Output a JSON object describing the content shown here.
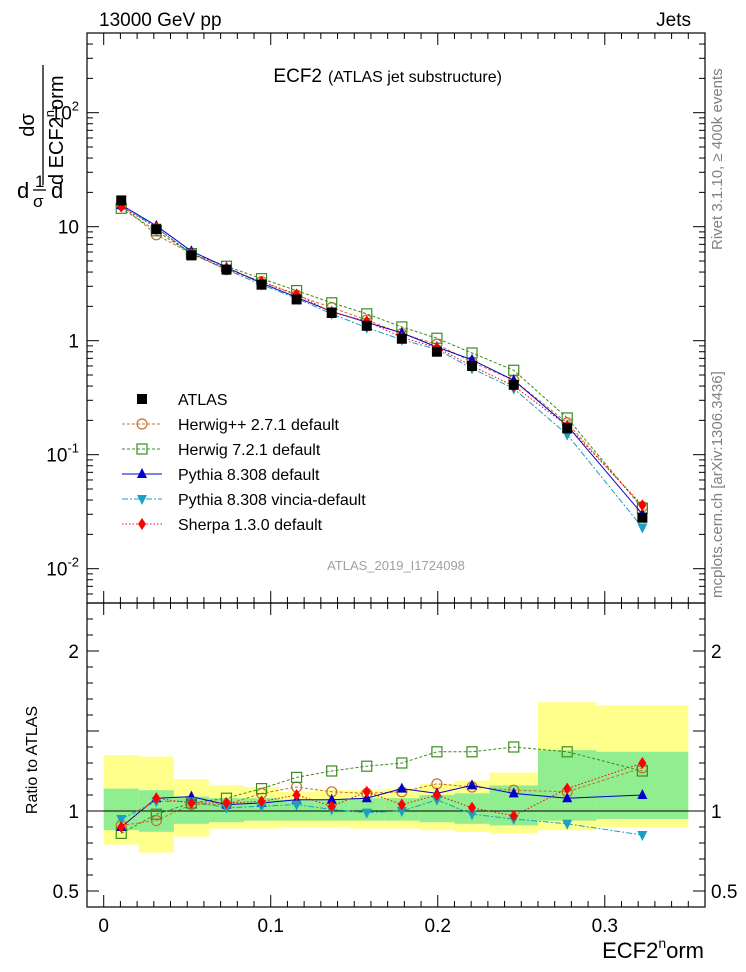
{
  "header": {
    "left": "13000 GeV pp",
    "right": "Jets",
    "title": "ECF2",
    "subtitle": "(ATLAS jet substructure)",
    "side_top": "Rivet 3.1.10, ≥ 400k events",
    "side_bottom": "mcplots.cern.ch [arXiv:1306.3436]",
    "watermark": "ATLAS_2019_I1724098"
  },
  "chart_data": [
    {
      "type": "line",
      "panel": "main",
      "ylabel": "1/σ dσ/d ECF2^norm",
      "yscale": "log",
      "ylim": [
        0.005,
        500
      ],
      "xlim": [
        -0.01,
        0.36
      ],
      "ytick_labels": [
        "10^-2",
        "10^-1",
        "1",
        "10",
        "10^2"
      ],
      "x": [
        0.0105,
        0.0315,
        0.0525,
        0.0735,
        0.0945,
        0.1155,
        0.1365,
        0.1575,
        0.1785,
        0.1995,
        0.2205,
        0.2455,
        0.2775,
        0.3225
      ],
      "series": [
        {
          "name": "ATLAS",
          "color": "#000000",
          "marker": "square",
          "values": [
            17.0,
            9.5,
            5.6,
            4.2,
            3.1,
            2.3,
            1.75,
            1.35,
            1.04,
            0.8,
            0.6,
            0.41,
            0.17,
            0.028
          ]
        },
        {
          "name": "Herwig++ 2.7.1 default",
          "color": "#c87028",
          "marker": "open-circle",
          "values": [
            15.5,
            8.5,
            5.8,
            4.2,
            3.3,
            2.5,
            1.95,
            1.52,
            1.15,
            0.93,
            0.65,
            0.45,
            0.19,
            0.035
          ]
        },
        {
          "name": "Herwig 7.2.1 default",
          "color": "#3c8c20",
          "marker": "open-square",
          "values": [
            14.5,
            9.2,
            5.8,
            4.5,
            3.5,
            2.75,
            2.15,
            1.72,
            1.32,
            1.05,
            0.78,
            0.55,
            0.21,
            0.034
          ]
        },
        {
          "name": "Pythia 8.308 default",
          "color": "#0000cc",
          "marker": "triangle-up",
          "values": [
            15.5,
            10.2,
            6.1,
            4.4,
            3.2,
            2.4,
            1.8,
            1.45,
            1.17,
            0.88,
            0.68,
            0.45,
            0.18,
            0.03
          ]
        },
        {
          "name": "Pythia 8.308 vincia-default",
          "color": "#1aa0c0",
          "marker": "triangle-down",
          "values": [
            15.5,
            9.8,
            5.8,
            4.2,
            3.1,
            2.35,
            1.72,
            1.3,
            1.02,
            0.84,
            0.57,
            0.38,
            0.15,
            0.023
          ]
        },
        {
          "name": "Sherpa 1.3.0 default",
          "color": "#ff0000",
          "marker": "diamond",
          "values": [
            15.0,
            9.8,
            5.8,
            4.3,
            3.3,
            2.55,
            1.78,
            1.48,
            1.07,
            0.87,
            0.6,
            0.4,
            0.18,
            0.036
          ]
        }
      ]
    },
    {
      "type": "line",
      "panel": "ratio",
      "ylabel": "Ratio to ATLAS",
      "xlabel": "ECF2^norm",
      "ylim": [
        0.4,
        2.3
      ],
      "xlim": [
        -0.01,
        0.36
      ],
      "ytick_labels": [
        "0.5",
        "1",
        "2"
      ],
      "xtick_labels": [
        "0",
        "0.1",
        "0.2",
        "0.3"
      ],
      "x": [
        0.0105,
        0.0315,
        0.0525,
        0.0735,
        0.0945,
        0.1155,
        0.1365,
        0.1575,
        0.1785,
        0.1995,
        0.2205,
        0.2455,
        0.2775,
        0.3225
      ],
      "bin_edges": [
        0.0,
        0.021,
        0.042,
        0.063,
        0.084,
        0.105,
        0.126,
        0.147,
        0.168,
        0.189,
        0.21,
        0.231,
        0.26,
        0.295,
        0.35
      ],
      "band_yellow": [
        [
          0.79,
          1.35
        ],
        [
          0.74,
          1.34
        ],
        [
          0.84,
          1.2
        ],
        [
          0.89,
          1.16
        ],
        [
          0.89,
          1.15
        ],
        [
          0.9,
          1.12
        ],
        [
          0.9,
          1.13
        ],
        [
          0.89,
          1.13
        ],
        [
          0.89,
          1.14
        ],
        [
          0.88,
          1.17
        ],
        [
          0.87,
          1.19
        ],
        [
          0.86,
          1.24
        ],
        [
          0.88,
          1.68
        ],
        [
          0.9,
          1.66
        ]
      ],
      "band_green": [
        [
          0.88,
          1.14
        ],
        [
          0.87,
          1.13
        ],
        [
          0.92,
          1.09
        ],
        [
          0.93,
          1.08
        ],
        [
          0.94,
          1.08
        ],
        [
          0.94,
          1.07
        ],
        [
          0.94,
          1.07
        ],
        [
          0.94,
          1.08
        ],
        [
          0.94,
          1.08
        ],
        [
          0.93,
          1.1
        ],
        [
          0.92,
          1.11
        ],
        [
          0.91,
          1.16
        ],
        [
          0.94,
          1.38
        ],
        [
          0.95,
          1.37
        ]
      ],
      "series": [
        {
          "name": "Herwig++ 2.7.1 default",
          "color": "#c87028",
          "marker": "open-circle",
          "values": [
            0.91,
            0.94,
            1.04,
            1.04,
            1.11,
            1.15,
            1.12,
            1.11,
            1.12,
            1.17,
            1.15,
            1.13,
            1.12,
            1.27
          ]
        },
        {
          "name": "Herwig 7.2.1 default",
          "color": "#3c8c20",
          "marker": "open-square",
          "values": [
            0.86,
            0.98,
            1.05,
            1.08,
            1.14,
            1.21,
            1.25,
            1.28,
            1.3,
            1.37,
            1.37,
            1.4,
            1.37,
            1.25
          ]
        },
        {
          "name": "Pythia 8.308 default",
          "color": "#0000cc",
          "marker": "triangle-up",
          "values": [
            0.9,
            1.08,
            1.09,
            1.04,
            1.05,
            1.07,
            1.07,
            1.08,
            1.14,
            1.11,
            1.16,
            1.11,
            1.08,
            1.1
          ]
        },
        {
          "name": "Pythia 8.308 vincia-default",
          "color": "#1aa0c0",
          "marker": "triangle-down",
          "values": [
            0.95,
            1.06,
            1.06,
            1.02,
            1.03,
            1.04,
            1.01,
            0.99,
            1.0,
            1.07,
            0.98,
            0.95,
            0.92,
            0.85
          ]
        },
        {
          "name": "Sherpa 1.3.0 default",
          "color": "#ff0000",
          "marker": "diamond",
          "values": [
            0.9,
            1.08,
            1.05,
            1.05,
            1.06,
            1.1,
            1.03,
            1.12,
            1.04,
            1.1,
            1.02,
            0.97,
            1.14,
            1.3
          ]
        }
      ]
    }
  ]
}
